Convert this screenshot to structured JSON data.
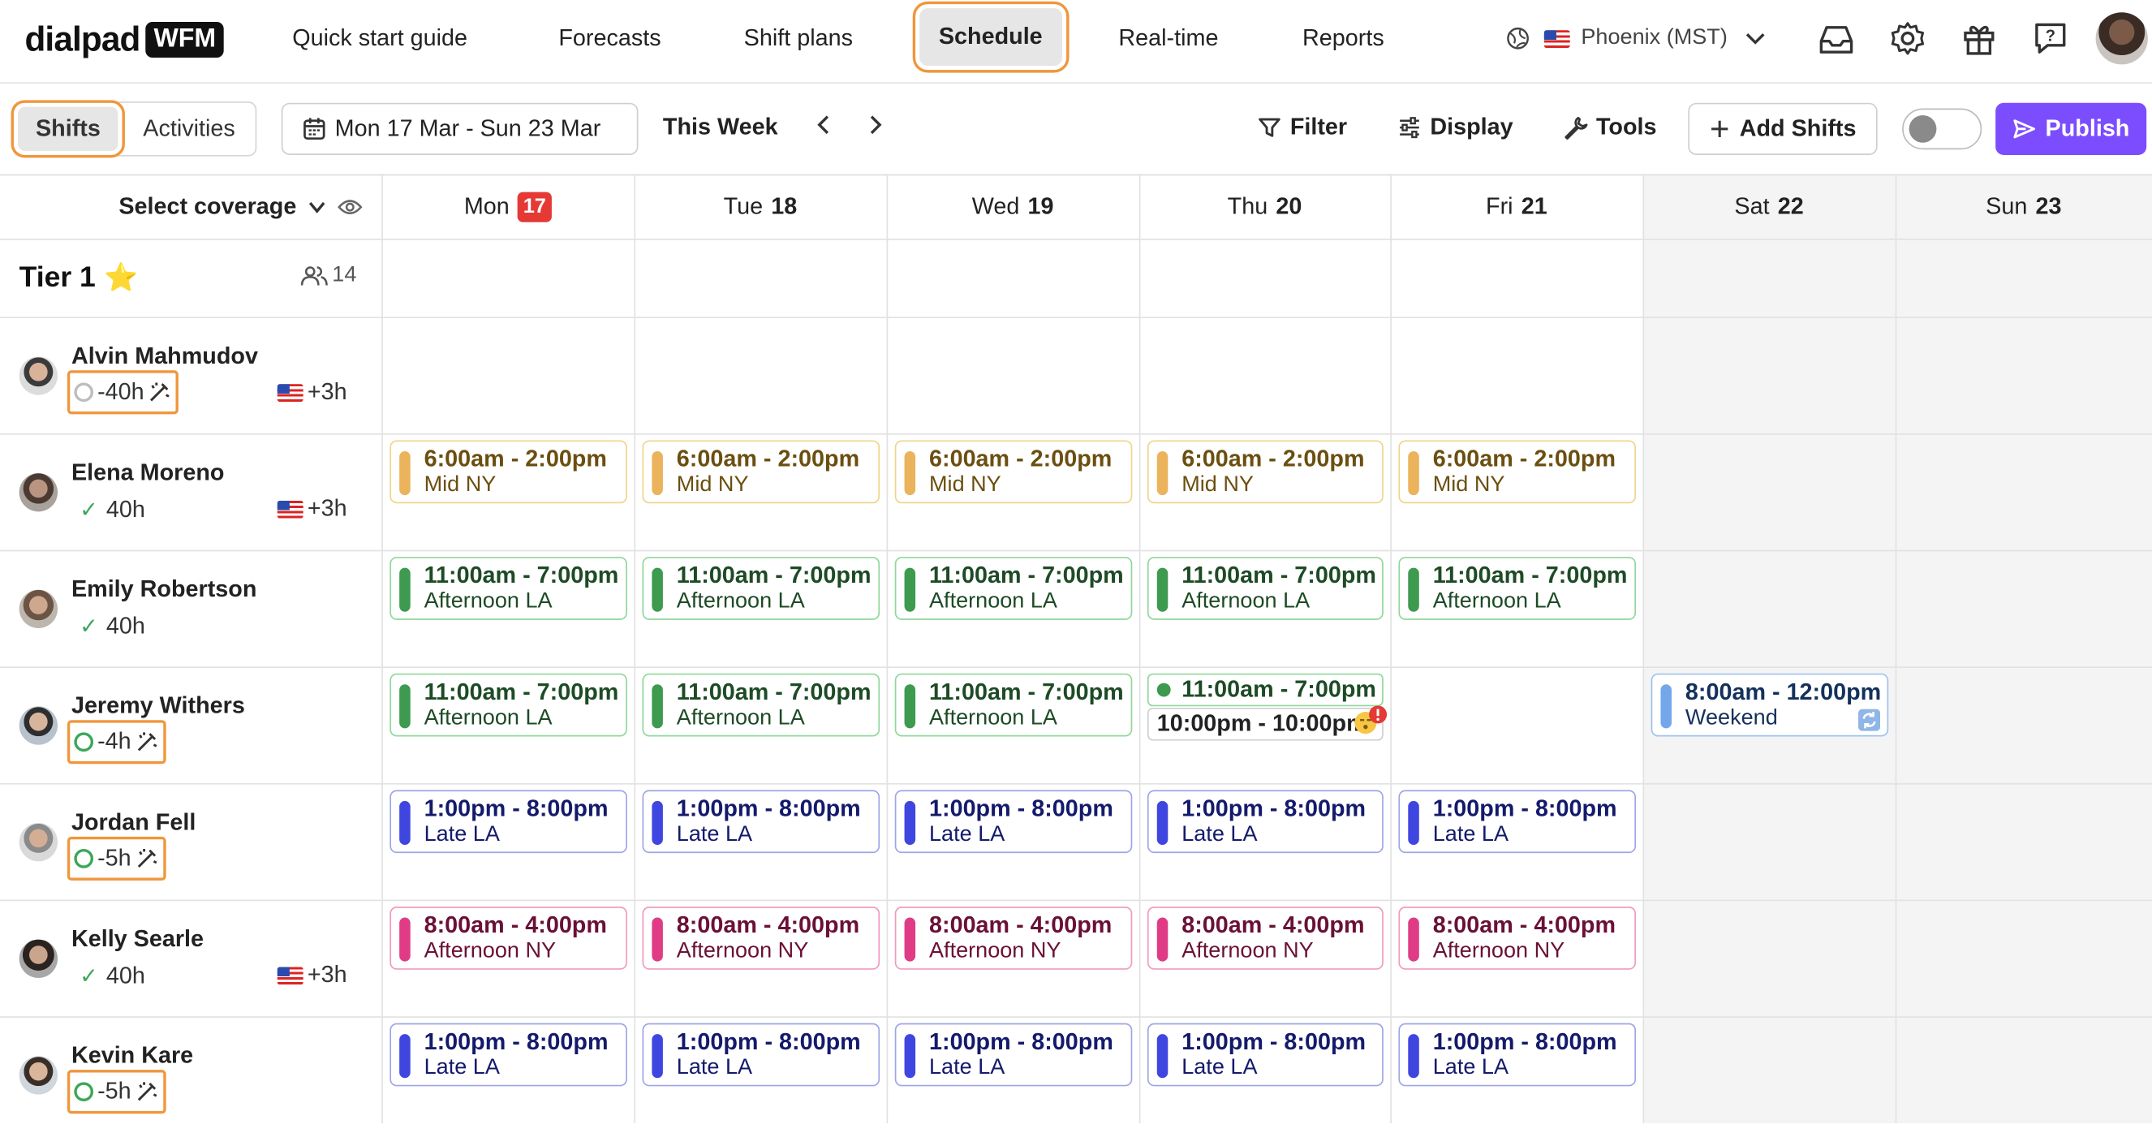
{
  "app": {
    "logo_text": "dialpad",
    "logo_badge": "WFM"
  },
  "nav": {
    "items": [
      "Quick start guide",
      "Forecasts",
      "Shift plans",
      "Schedule",
      "Real-time",
      "Reports"
    ],
    "active": "Schedule",
    "timezone": "Phoenix (MST)"
  },
  "toolbar": {
    "tab_shifts": "Shifts",
    "tab_activities": "Activities",
    "date_range": "Mon 17 Mar - Sun 23 Mar",
    "this_week": "This Week",
    "filter": "Filter",
    "display": "Display",
    "tools": "Tools",
    "add_shifts": "Add Shifts",
    "publish": "Publish"
  },
  "grid": {
    "select_coverage": "Select coverage",
    "days": [
      {
        "dow": "Mon",
        "date": "17",
        "today": true
      },
      {
        "dow": "Tue",
        "date": "18"
      },
      {
        "dow": "Wed",
        "date": "19"
      },
      {
        "dow": "Thu",
        "date": "20"
      },
      {
        "dow": "Fri",
        "date": "21"
      },
      {
        "dow": "Sat",
        "date": "22"
      },
      {
        "dow": "Sun",
        "date": "23"
      }
    ],
    "tier": {
      "name": "Tier 1",
      "member_count": "14"
    }
  },
  "agents": [
    {
      "name": "Alvin Mahmudov",
      "hours": "-40h",
      "offset": "+3h"
    },
    {
      "name": "Elena Moreno",
      "hours": "40h",
      "offset": "+3h"
    },
    {
      "name": "Emily Robertson",
      "hours": "40h"
    },
    {
      "name": "Jeremy Withers",
      "hours": "-4h"
    },
    {
      "name": "Jordan Fell",
      "hours": "-5h"
    },
    {
      "name": "Kelly Searle",
      "hours": "40h",
      "offset": "+3h"
    },
    {
      "name": "Kevin Kare",
      "hours": "-5h"
    }
  ],
  "shifts": {
    "mid_ny": {
      "time": "6:00am - 2:00pm",
      "name": "Mid NY"
    },
    "afternoon_la": {
      "time": "11:00am - 7:00pm",
      "name": "Afternoon LA"
    },
    "late_la": {
      "time": "1:00pm - 8:00pm",
      "name": "Late LA"
    },
    "afternoon_ny": {
      "time": "8:00am - 4:00pm",
      "name": "Afternoon NY"
    },
    "weekend": {
      "time": "8:00am - 12:00pm",
      "name": "Weekend"
    },
    "thu_split_top": "11:00am - 7:00pm",
    "thu_split_bottom": "10:00pm - 10:00pm"
  },
  "colors": {
    "accent_publish": "#7c4dff",
    "highlight_outline": "#f0963c",
    "today_badge": "#e53935",
    "mid_ny": "#ebb35b",
    "afternoon_la": "#3d9a4e",
    "late_la": "#3f46e0",
    "afternoon_ny": "#e03c86",
    "weekend": "#74a7ea"
  }
}
